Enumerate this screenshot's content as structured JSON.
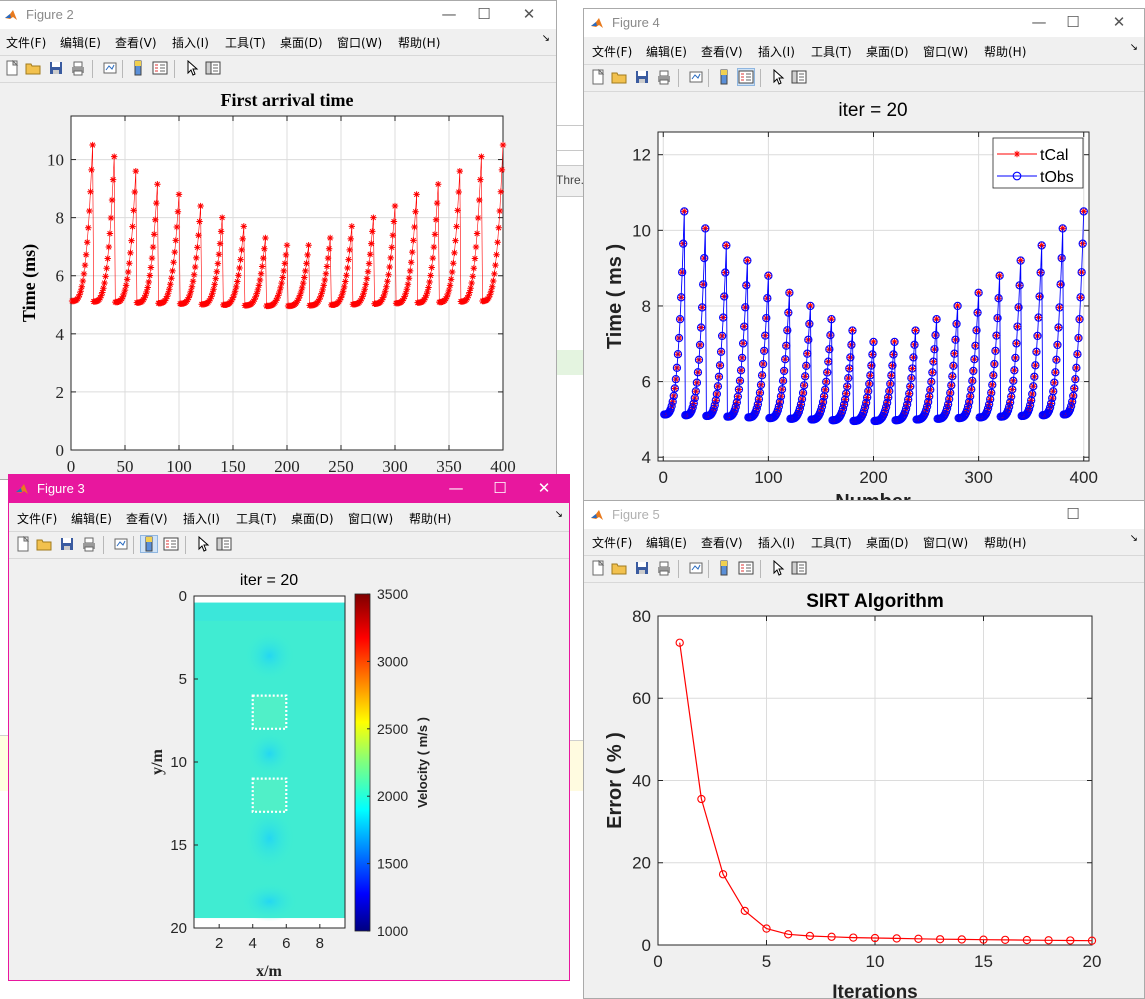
{
  "menus": [
    "文件(F)",
    "编辑(E)",
    "查看(V)",
    "插入(I)",
    "工具(T)",
    "桌面(D)",
    "窗口(W)",
    "帮助(H)"
  ],
  "windows": {
    "fig2": {
      "title": "Figure 2"
    },
    "fig4": {
      "title": "Figure 4"
    },
    "fig3": {
      "title": "Figure 3"
    },
    "fig5": {
      "title": "Figure 5"
    }
  },
  "background": {
    "partial_text": "Thre."
  },
  "colors": {
    "active_title": "#e8179e",
    "red": "#ff0000",
    "blue": "#0000ff"
  },
  "chart_data": [
    {
      "id": "first-arrival",
      "type": "scatter",
      "title": "First arrival time",
      "xlabel": "",
      "ylabel": "Time (ms)",
      "xlim": [
        0,
        400
      ],
      "ylim": [
        0,
        11.5
      ],
      "xticks": [
        0,
        50,
        100,
        150,
        200,
        250,
        300,
        350,
        400
      ],
      "yticks": [
        0,
        2,
        4,
        6,
        8,
        10
      ],
      "grid": true,
      "marker": "*",
      "color": "#ff0000",
      "source_count": 20,
      "receivers_per_source": 20,
      "peaks": [
        10.5,
        10.1,
        9.6,
        9.15,
        8.8,
        8.4,
        8.0,
        7.7,
        7.3,
        7.05,
        7.05,
        7.3,
        7.7,
        8.0,
        8.4,
        8.8,
        9.15,
        9.6,
        10.1,
        10.5
      ],
      "baseline_left": 5.0,
      "baseline_min": 4.85
    },
    {
      "id": "iter-compare",
      "type": "line",
      "title": "iter = 20",
      "xlabel": "Number",
      "ylabel": "Time ( ms )",
      "xlim": [
        -5,
        405
      ],
      "ylim": [
        3.9,
        12.6
      ],
      "xticks": [
        0,
        100,
        200,
        300,
        400
      ],
      "yticks": [
        4,
        6,
        8,
        10,
        12
      ],
      "grid": true,
      "legend_position": "top-right",
      "series": [
        {
          "name": "tCal",
          "marker": "*",
          "color": "#ff0000"
        },
        {
          "name": "tObs",
          "marker": "o",
          "color": "#0000ff"
        }
      ],
      "peaks": [
        10.5,
        10.05,
        9.6,
        9.2,
        8.8,
        8.35,
        8.0,
        7.65,
        7.35,
        7.05,
        7.05,
        7.35,
        7.65,
        8.0,
        8.35,
        8.8,
        9.2,
        9.6,
        10.05,
        10.5
      ]
    },
    {
      "id": "velocity-model",
      "type": "heatmap",
      "title": "iter = 20",
      "xlabel": "x/m",
      "ylabel": "y/m",
      "xlim": [
        0.5,
        9.5
      ],
      "ylim": [
        0,
        20
      ],
      "xticks": [
        2,
        4,
        6,
        8
      ],
      "yticks": [
        0,
        5,
        10,
        15,
        20
      ],
      "colorbar": {
        "label": "Velocity ( m/s )",
        "min": 1000,
        "max": 3500,
        "ticks": [
          1000,
          1500,
          2000,
          2500,
          3000,
          3500
        ]
      },
      "anomaly_boxes": [
        {
          "x0": 4,
          "x1": 6,
          "y0": 6,
          "y1": 8
        },
        {
          "x0": 4,
          "x1": 6,
          "y0": 11,
          "y1": 13
        }
      ]
    },
    {
      "id": "sirt-error",
      "type": "line",
      "title": "SIRT Algorithm",
      "xlabel": "Iterations",
      "ylabel": "Error ( % )",
      "xlim": [
        0,
        20
      ],
      "ylim": [
        0,
        80
      ],
      "xticks": [
        0,
        5,
        10,
        15,
        20
      ],
      "yticks": [
        0,
        20,
        40,
        60,
        80
      ],
      "grid": true,
      "x": [
        1,
        2,
        3,
        4,
        5,
        6,
        7,
        8,
        9,
        10,
        11,
        12,
        13,
        14,
        15,
        16,
        17,
        18,
        19,
        20
      ],
      "values": [
        73.5,
        35.5,
        17.2,
        8.3,
        4.0,
        2.6,
        2.2,
        2.0,
        1.8,
        1.7,
        1.6,
        1.5,
        1.4,
        1.35,
        1.3,
        1.25,
        1.2,
        1.15,
        1.1,
        1.05
      ],
      "marker": "o",
      "color": "#ff0000"
    }
  ]
}
